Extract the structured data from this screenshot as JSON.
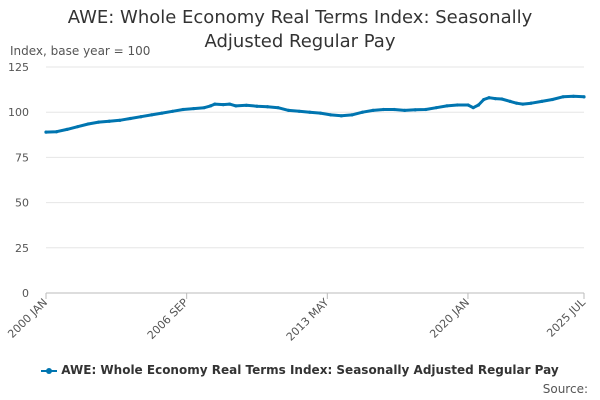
{
  "chart_data": {
    "type": "line",
    "title_line1": "AWE: Whole Economy Real Terms Index: Seasonally",
    "title_line2": "Adjusted Regular Pay",
    "ylabel": "Index, base year = 100",
    "ylim": [
      0,
      125
    ],
    "yticks": [
      0,
      25,
      50,
      75,
      100,
      125
    ],
    "xlim": [
      2000.0,
      2025.5
    ],
    "xticks": [
      {
        "label": "2000 JAN",
        "value": 2000.0
      },
      {
        "label": "2006 SEP",
        "value": 2006.667
      },
      {
        "label": "2013 MAY",
        "value": 2013.333
      },
      {
        "label": "2020 JAN",
        "value": 2020.0
      },
      {
        "label": "2025 JUL",
        "value": 2025.5
      }
    ],
    "grid": true,
    "series": [
      {
        "name": "AWE: Whole Economy Real Terms Index: Seasonally Adjusted Regular Pay",
        "color": "#0075b0",
        "x": [
          2000.0,
          2000.5,
          2001.0,
          2001.5,
          2002.0,
          2002.5,
          2003.0,
          2003.5,
          2004.0,
          2004.5,
          2005.0,
          2005.5,
          2006.0,
          2006.5,
          2007.0,
          2007.5,
          2007.8,
          2008.0,
          2008.4,
          2008.7,
          2009.0,
          2009.5,
          2010.0,
          2010.5,
          2011.0,
          2011.5,
          2012.0,
          2012.5,
          2013.0,
          2013.5,
          2014.0,
          2014.5,
          2015.0,
          2015.5,
          2016.0,
          2016.5,
          2017.0,
          2017.5,
          2018.0,
          2018.5,
          2019.0,
          2019.5,
          2020.0,
          2020.25,
          2020.5,
          2020.75,
          2021.0,
          2021.3,
          2021.6,
          2022.0,
          2022.3,
          2022.6,
          2023.0,
          2023.5,
          2024.0,
          2024.5,
          2025.0,
          2025.5
        ],
        "values": [
          89.0,
          89.2,
          90.5,
          92.0,
          93.5,
          94.5,
          95.0,
          95.5,
          96.5,
          97.5,
          98.5,
          99.5,
          100.5,
          101.5,
          102.0,
          102.5,
          103.5,
          104.5,
          104.2,
          104.5,
          103.5,
          103.8,
          103.3,
          103.0,
          102.5,
          101.0,
          100.5,
          100.0,
          99.5,
          98.5,
          98.0,
          98.5,
          100.0,
          101.0,
          101.5,
          101.5,
          101.0,
          101.3,
          101.5,
          102.5,
          103.5,
          104.0,
          104.0,
          102.5,
          104.0,
          107.0,
          108.0,
          107.5,
          107.3,
          106.0,
          105.0,
          104.5,
          105.0,
          106.0,
          107.0,
          108.5,
          108.8,
          108.5
        ]
      }
    ]
  },
  "legend": {
    "label": "AWE: Whole Economy Real Terms Index: Seasonally Adjusted Regular Pay"
  },
  "source": {
    "label": "Source:"
  }
}
